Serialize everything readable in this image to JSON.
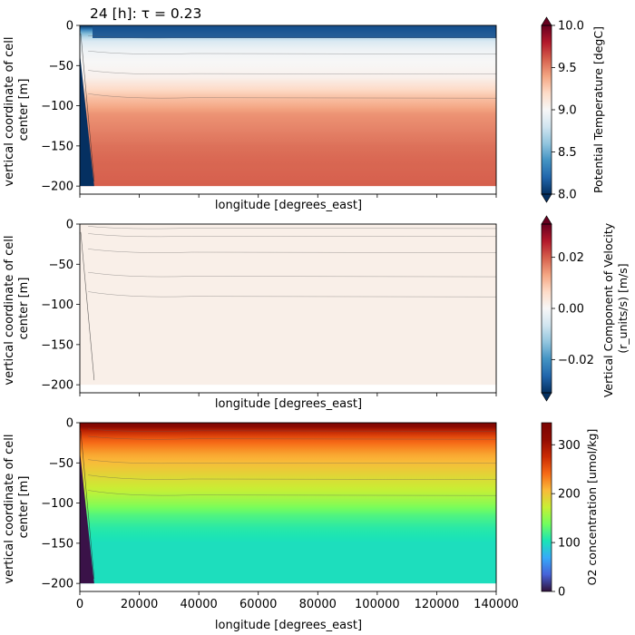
{
  "figure": {
    "title": "24 [h]: τ = 0.23"
  },
  "chart_data": [
    {
      "type": "heatmap",
      "name": "potential-temperature",
      "title": "24 [h]: τ = 0.23",
      "xlabel": "longitude [degrees_east]",
      "ylabel": "vertical coordinate of cell center [m]",
      "ylabel_lines": [
        "vertical coordinate of cell",
        "center [m]"
      ],
      "xlim": [
        0,
        140000
      ],
      "ylim": [
        -210,
        0
      ],
      "data_extent_y": [
        -200,
        0
      ],
      "x_ticks": [
        0,
        20000,
        40000,
        60000,
        80000,
        100000,
        120000,
        140000
      ],
      "x_ticklabels_visible": false,
      "y_ticks": [
        0,
        -50,
        -100,
        -150,
        -200
      ],
      "y_ticklabels": [
        "0",
        "−50",
        "−100",
        "−150",
        "−200"
      ],
      "colormap": "RdBu_r",
      "colorbar": {
        "label": "Potential Temperature [degC]",
        "range": [
          8.0,
          10.0
        ],
        "ticks": [
          8.0,
          8.5,
          9.0,
          9.5,
          10.0
        ],
        "ticklabels": [
          "8.0",
          "8.5",
          "9.0",
          "9.5",
          "10.0"
        ],
        "extend": "both"
      },
      "profile_depths": [
        0,
        -5,
        -12,
        -20,
        -30,
        -45,
        -55,
        -65,
        -75,
        -90,
        -110,
        -130,
        -150,
        -170,
        -200
      ],
      "profile_values": [
        8.0,
        8.3,
        8.65,
        8.85,
        8.95,
        9.0,
        9.02,
        9.05,
        9.15,
        9.3,
        9.45,
        9.5,
        9.55,
        9.58,
        9.6
      ],
      "contour_depths": [
        -15,
        -35,
        -60,
        -90
      ],
      "wall_value": 8.0
    },
    {
      "type": "heatmap",
      "name": "vertical-velocity",
      "xlabel": "longitude [degrees_east]",
      "ylabel": "vertical coordinate of cell center [m]",
      "ylabel_lines": [
        "vertical coordinate of cell",
        "center [m]"
      ],
      "xlim": [
        0,
        140000
      ],
      "ylim": [
        -210,
        0
      ],
      "data_extent_y": [
        -200,
        0
      ],
      "x_ticks": [
        0,
        20000,
        40000,
        60000,
        80000,
        100000,
        120000,
        140000
      ],
      "x_ticklabels_visible": false,
      "y_ticks": [
        0,
        -50,
        -100,
        -150,
        -200
      ],
      "y_ticklabels": [
        "0",
        "−50",
        "−100",
        "−150",
        "−200"
      ],
      "colormap": "RdBu_r",
      "colorbar": {
        "label": "Vertical Component of Velocity (r_units/s) [m/s]",
        "label_lines": [
          "Vertical Component of Velocity",
          "(r_units/s) [m/s]"
        ],
        "range": [
          -0.033,
          0.033
        ],
        "ticks": [
          -0.02,
          0.0,
          0.02
        ],
        "ticklabels": [
          "−0.02",
          "0.00",
          "0.02"
        ],
        "extend": "both"
      },
      "field_value": 0.002,
      "contour_depths": [
        -5,
        -15,
        -35,
        -65,
        -90
      ]
    },
    {
      "type": "heatmap",
      "name": "o2-concentration",
      "xlabel": "longitude [degrees_east]",
      "ylabel": "vertical coordinate of cell center [m]",
      "ylabel_lines": [
        "vertical coordinate of cell",
        "center [m]"
      ],
      "xlim": [
        0,
        140000
      ],
      "ylim": [
        -210,
        0
      ],
      "data_extent_y": [
        -200,
        0
      ],
      "x_ticks": [
        0,
        20000,
        40000,
        60000,
        80000,
        100000,
        120000,
        140000
      ],
      "x_ticklabels": [
        "0",
        "20000",
        "40000",
        "60000",
        "80000",
        "100000",
        "120000",
        "140000"
      ],
      "x_ticklabels_visible": true,
      "y_ticks": [
        0,
        -50,
        -100,
        -150,
        -200
      ],
      "y_ticklabels": [
        "0",
        "−50",
        "−100",
        "−150",
        "−200"
      ],
      "colormap": "turbo",
      "colorbar": {
        "label": "O2 concentration [umol/kg]",
        "range": [
          0,
          345
        ],
        "ticks": [
          0,
          100,
          200,
          300
        ],
        "ticklabels": [
          "0",
          "100",
          "200",
          "300"
        ],
        "extend": "neither"
      },
      "profile_depths": [
        0,
        -5,
        -10,
        -18,
        -28,
        -40,
        -55,
        -70,
        -85,
        -100,
        -115,
        -130,
        -150,
        -170,
        -200
      ],
      "profile_values": [
        340,
        320,
        285,
        255,
        235,
        215,
        200,
        185,
        170,
        150,
        125,
        110,
        100,
        100,
        100
      ],
      "contour_depths": [
        -10,
        -20,
        -50,
        -70,
        -90
      ],
      "wall_value": 0
    }
  ]
}
